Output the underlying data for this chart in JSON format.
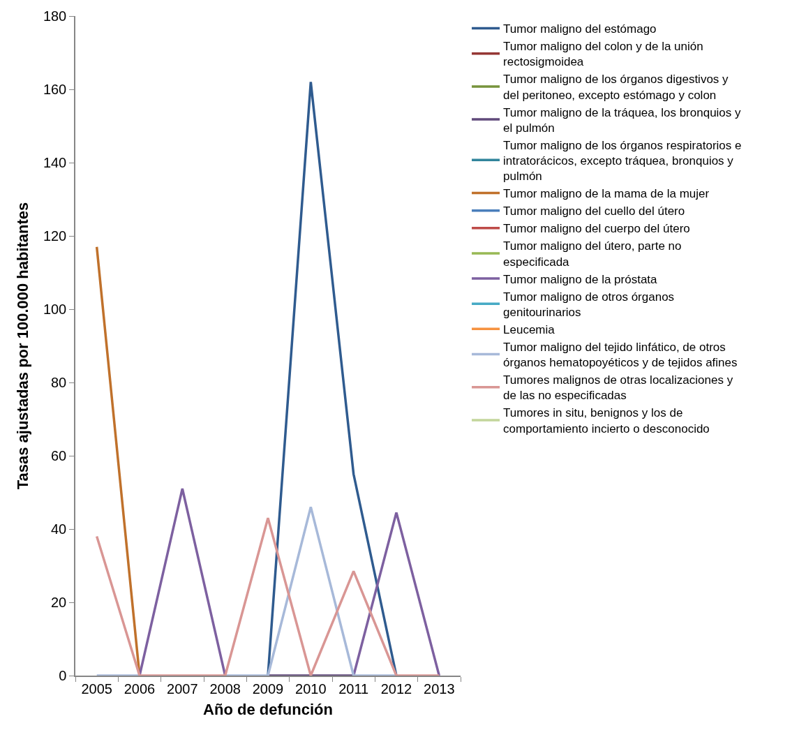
{
  "chart_data": {
    "type": "line",
    "xlabel": "Año de defunción",
    "ylabel": "Tasas ajustadas por 100.000 habitantes",
    "categories": [
      "2005",
      "2006",
      "2007",
      "2008",
      "2009",
      "2010",
      "2011",
      "2012",
      "2013"
    ],
    "ylim": [
      0,
      180
    ],
    "yticks": [
      0,
      20,
      40,
      60,
      80,
      100,
      120,
      140,
      160,
      180
    ],
    "legend": "right",
    "marker": "none",
    "line_style": "solid",
    "series": [
      {
        "name": "Tumor maligno del estómago",
        "color": "#2f5b8f",
        "values": [
          null,
          null,
          null,
          null,
          0,
          162,
          55,
          0,
          null
        ]
      },
      {
        "name": "Tumor maligno del colon y de la unión rectosigmoidea",
        "color": "#953735",
        "values": [
          null,
          null,
          null,
          null,
          null,
          null,
          null,
          null,
          null
        ]
      },
      {
        "name": "Tumor maligno de los órganos digestivos y del peritoneo, excepto estómago y colon",
        "color": "#77933c",
        "values": [
          null,
          null,
          null,
          null,
          null,
          null,
          null,
          null,
          null
        ]
      },
      {
        "name": "Tumor maligno de la tráquea, los bronquios y el pulmón",
        "color": "#604a7b",
        "values": [
          null,
          null,
          null,
          null,
          0,
          0,
          0,
          null,
          null
        ]
      },
      {
        "name": "Tumor maligno de los órganos respiratorios e intratorácicos, excepto tráquea, bronquios y pulmón",
        "color": "#31859c",
        "values": [
          null,
          null,
          null,
          null,
          null,
          null,
          null,
          null,
          null
        ]
      },
      {
        "name": "Tumor maligno de la mama de la mujer",
        "color": "#c0712b",
        "values": [
          117,
          0,
          null,
          null,
          null,
          null,
          null,
          null,
          null
        ]
      },
      {
        "name": "Tumor maligno del cuello del útero",
        "color": "#4a7ebb",
        "values": [
          null,
          null,
          null,
          null,
          null,
          null,
          null,
          null,
          null
        ]
      },
      {
        "name": "Tumor maligno del cuerpo del útero",
        "color": "#be4b48",
        "values": [
          null,
          null,
          null,
          null,
          null,
          null,
          null,
          null,
          null
        ]
      },
      {
        "name": "Tumor maligno del útero, parte no especificada",
        "color": "#98b954",
        "values": [
          null,
          null,
          null,
          null,
          null,
          null,
          null,
          null,
          null
        ]
      },
      {
        "name": "Tumor maligno de la próstata",
        "color": "#7d60a0",
        "values": [
          null,
          0,
          51,
          0,
          null,
          null,
          0,
          44.5,
          0
        ]
      },
      {
        "name": "Tumor maligno de otros órganos genitourinarios",
        "color": "#46aac5",
        "values": [
          null,
          null,
          null,
          null,
          null,
          null,
          null,
          null,
          null
        ]
      },
      {
        "name": "Leucemia",
        "color": "#f69240",
        "values": [
          null,
          null,
          null,
          null,
          null,
          null,
          null,
          null,
          null
        ]
      },
      {
        "name": "Tumor maligno del tejido linfático, de otros órganos hematopoyéticos y de tejidos afines",
        "color": "#a7b9d9",
        "values": [
          0,
          0,
          null,
          0,
          0,
          46,
          0,
          0,
          null
        ]
      },
      {
        "name": "Tumores malignos de otras localizaciones y de las no especificadas",
        "color": "#d99694",
        "values": [
          38,
          0,
          0,
          0,
          43,
          0,
          28.5,
          0,
          0
        ]
      },
      {
        "name": "Tumores in situ, benignos y los de comportamiento incierto o desconocido",
        "color": "#c3d69b",
        "values": [
          null,
          null,
          null,
          null,
          null,
          null,
          null,
          null,
          null
        ]
      }
    ]
  }
}
